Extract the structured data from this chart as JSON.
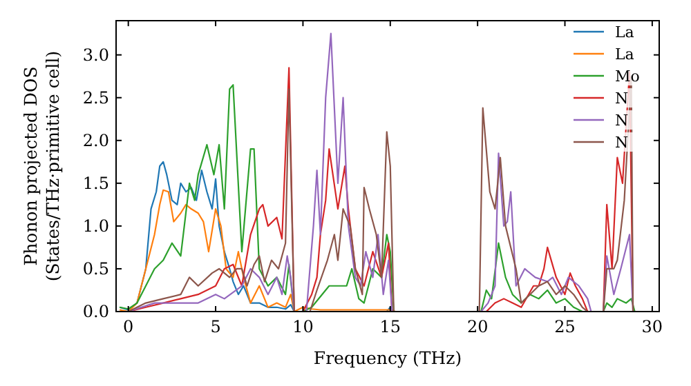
{
  "chart_data": {
    "type": "line",
    "xlabel": "Frequency (THz)",
    "ylabel": "Phonon projected DOS\n(States/THz·primitive cell)",
    "xlim": [
      -0.7,
      30.4
    ],
    "xticks": [
      0,
      5,
      10,
      15,
      20,
      25,
      30
    ],
    "ylim": [
      0,
      3.4
    ],
    "yticks": [
      {
        "value": 0,
        "label": "0.0"
      },
      {
        "value": 0.5,
        "label": "0.5"
      },
      {
        "value": 1,
        "label": "1.0"
      },
      {
        "value": 1.5,
        "label": "1.5"
      },
      {
        "value": 2,
        "label": "2.0"
      },
      {
        "value": 2.5,
        "label": "2.5"
      },
      {
        "value": 3,
        "label": "3.0"
      }
    ],
    "grid": false,
    "legend": "top right",
    "marker": "none",
    "line_style": "solid",
    "series": [
      {
        "name": "La",
        "color": "#1f77b4",
        "x": [
          -0.5,
          0,
          0.5,
          1,
          1.3,
          1.6,
          1.8,
          2.0,
          2.2,
          2.5,
          2.8,
          3.0,
          3.3,
          3.6,
          3.9,
          4.2,
          4.5,
          4.8,
          5.0,
          5.2,
          5.5,
          5.8,
          6.0,
          6.3,
          6.6,
          7,
          7.5,
          8,
          8.5,
          9,
          9.3,
          9.5,
          10,
          14.8,
          15,
          15.2
        ],
        "values": [
          0.05,
          0.02,
          0.1,
          0.5,
          1.2,
          1.4,
          1.7,
          1.75,
          1.6,
          1.3,
          1.25,
          1.5,
          1.4,
          1.45,
          1.3,
          1.65,
          1.4,
          1.2,
          1.55,
          1.0,
          0.7,
          0.5,
          0.35,
          0.2,
          0.3,
          0.1,
          0.1,
          0.05,
          0.05,
          0.03,
          0.08,
          0,
          0,
          0,
          0.05,
          0
        ]
      },
      {
        "name": "La",
        "color": "#ff7f0e",
        "x": [
          -0.5,
          0,
          0.5,
          1,
          1.5,
          1.8,
          2.0,
          2.3,
          2.6,
          3.0,
          3.3,
          3.6,
          4.0,
          4.3,
          4.6,
          5.0,
          5.3,
          5.6,
          6.0,
          6.3,
          6.6,
          7.0,
          7.5,
          8,
          8.5,
          9,
          9.3,
          9.5,
          10,
          10.5,
          11,
          15,
          15.3
        ],
        "values": [
          0.02,
          0,
          0.1,
          0.5,
          0.9,
          1.25,
          1.42,
          1.4,
          1.05,
          1.15,
          1.25,
          1.2,
          1.15,
          1.05,
          0.7,
          1.2,
          1.0,
          0.5,
          0.4,
          0.7,
          0.4,
          0.1,
          0.3,
          0.05,
          0.1,
          0.05,
          0.2,
          0,
          0.05,
          0.03,
          0.02,
          0.02,
          0
        ]
      },
      {
        "name": "Mo",
        "color": "#2ca02c",
        "x": [
          -0.5,
          0,
          0.5,
          1,
          1.5,
          2.0,
          2.5,
          3.0,
          3.5,
          3.8,
          4.0,
          4.5,
          4.9,
          5.2,
          5.5,
          5.8,
          6.0,
          6.5,
          7.0,
          7.2,
          7.5,
          8,
          8.5,
          9,
          9.2,
          9.5,
          10,
          10.5,
          11.5,
          12.5,
          12.8,
          13.2,
          13.5,
          14,
          14.5,
          14.8,
          15,
          15.2,
          20.2,
          20.5,
          20.8,
          21.2,
          21.6,
          22,
          22.5,
          23,
          23.5,
          24,
          24.5,
          25,
          25.5,
          26,
          27.2,
          27.4,
          27.7,
          28,
          28.5,
          28.8,
          29
        ],
        "values": [
          0.05,
          0.03,
          0.1,
          0.3,
          0.5,
          0.6,
          0.8,
          0.65,
          1.5,
          1.3,
          1.6,
          1.95,
          1.6,
          1.95,
          1.2,
          2.6,
          2.65,
          0.7,
          1.9,
          1.9,
          0.5,
          0.3,
          0.4,
          0.2,
          0.55,
          0,
          0,
          0.05,
          0.3,
          0.3,
          0.5,
          0.15,
          0.1,
          0.5,
          0.4,
          0.9,
          0.7,
          0,
          0,
          0.25,
          0.15,
          0.8,
          0.4,
          0.2,
          0.1,
          0.2,
          0.15,
          0.25,
          0.1,
          0.15,
          0.05,
          0,
          0,
          0.1,
          0.05,
          0.15,
          0.1,
          0.15,
          0
        ]
      },
      {
        "name": "N",
        "color": "#d62728",
        "x": [
          -0.5,
          0,
          1,
          2,
          3,
          4,
          5,
          5.5,
          6,
          6.5,
          7,
          7.5,
          7.7,
          8,
          8.5,
          8.8,
          9.2,
          9.5,
          10,
          10.5,
          10.8,
          11,
          11.3,
          11.5,
          12,
          12.4,
          12.6,
          13,
          13.5,
          14,
          14.5,
          14.9,
          15.1,
          20.5,
          21,
          21.5,
          22,
          22.5,
          23.2,
          23.5,
          23.8,
          24,
          24.5,
          25,
          25.3,
          25.6,
          26,
          26.3,
          27.2,
          27.4,
          27.7,
          28,
          28.3,
          28.7,
          28.9
        ],
        "values": [
          0,
          0,
          0.05,
          0.1,
          0.15,
          0.2,
          0.3,
          0.5,
          0.55,
          0.3,
          0.9,
          1.2,
          1.25,
          1.0,
          1.1,
          0.85,
          2.85,
          0,
          0,
          0.2,
          0.4,
          0.9,
          1.3,
          1.9,
          1.2,
          1.7,
          1.2,
          0.5,
          0.3,
          0.7,
          0.4,
          0.8,
          0,
          0,
          0.1,
          0.15,
          0.1,
          0.05,
          0.3,
          0.3,
          0.5,
          0.75,
          0.4,
          0.2,
          0.45,
          0.3,
          0.15,
          0,
          0,
          1.25,
          0.5,
          1.8,
          1.5,
          2.8,
          0
        ]
      },
      {
        "name": "N",
        "color": "#9467bd",
        "x": [
          -0.5,
          0,
          1.5,
          3,
          4,
          5,
          5.5,
          6.5,
          7,
          7.5,
          8,
          8.5,
          8.8,
          9.1,
          9.3,
          9.5,
          10.2,
          10.6,
          10.8,
          11.0,
          11.3,
          11.6,
          12.0,
          12.3,
          12.6,
          13,
          13.3,
          13.6,
          14,
          14.3,
          14.6,
          14.9,
          15.1,
          20.2,
          20.6,
          21,
          21.2,
          21.5,
          21.7,
          21.9,
          22.2,
          22.7,
          23.3,
          24,
          24.3,
          24.8,
          25.2,
          25.8,
          26.3,
          26.5,
          27.2,
          27.4,
          27.8,
          28.2,
          28.7,
          28.9
        ],
        "values": [
          0,
          0,
          0.1,
          0.1,
          0.1,
          0.2,
          0.15,
          0.3,
          0.5,
          0.4,
          0.2,
          0.4,
          0.2,
          0.65,
          0.4,
          0,
          0,
          1.0,
          1.65,
          0.9,
          2.5,
          3.25,
          1.5,
          2.5,
          1.0,
          0.4,
          0.3,
          0.7,
          0.4,
          0.9,
          0.2,
          0.6,
          0,
          0,
          0.1,
          0.3,
          1.85,
          1.0,
          1.05,
          1.4,
          0.3,
          0.5,
          0.4,
          0.35,
          0.4,
          0.2,
          0.4,
          0.3,
          0.15,
          0,
          0,
          0.65,
          0.2,
          0.5,
          0.9,
          0
        ]
      },
      {
        "name": "N",
        "color": "#8c564b",
        "x": [
          -0.5,
          0,
          1,
          2,
          3,
          3.5,
          4,
          4.8,
          5.2,
          5.8,
          6.2,
          6.5,
          6.8,
          7.2,
          7.5,
          7.8,
          8.2,
          8.6,
          9.0,
          9.2,
          9.5,
          10.4,
          10.8,
          11.4,
          11.8,
          12,
          12.3,
          12.7,
          13,
          13.4,
          13.5,
          13.8,
          14.2,
          14.5,
          14.8,
          15.0,
          15.2,
          20.1,
          20.3,
          20.7,
          21,
          21.3,
          21.6,
          22.2,
          22.5,
          23,
          23.5,
          24,
          24.5,
          25,
          25.5,
          26,
          26.3,
          27.2,
          27.4,
          27.8,
          28,
          28.4,
          28.8,
          28.9
        ],
        "values": [
          0,
          0,
          0.1,
          0.15,
          0.2,
          0.4,
          0.3,
          0.45,
          0.5,
          0.4,
          0.5,
          0.5,
          0.3,
          0.55,
          0.65,
          0.35,
          0.6,
          0.5,
          0.8,
          2.6,
          0,
          0,
          0.25,
          0.6,
          0.9,
          0.6,
          1.2,
          1.0,
          0.5,
          0.2,
          1.45,
          1.2,
          0.9,
          0.4,
          2.1,
          1.7,
          0,
          0,
          2.38,
          1.4,
          1.2,
          1.8,
          1.0,
          0.5,
          0.1,
          0.2,
          0.3,
          0.35,
          0.2,
          0.3,
          0.2,
          0.05,
          0,
          0,
          0.5,
          0.5,
          0.6,
          1.3,
          2.75,
          0
        ]
      }
    ]
  }
}
